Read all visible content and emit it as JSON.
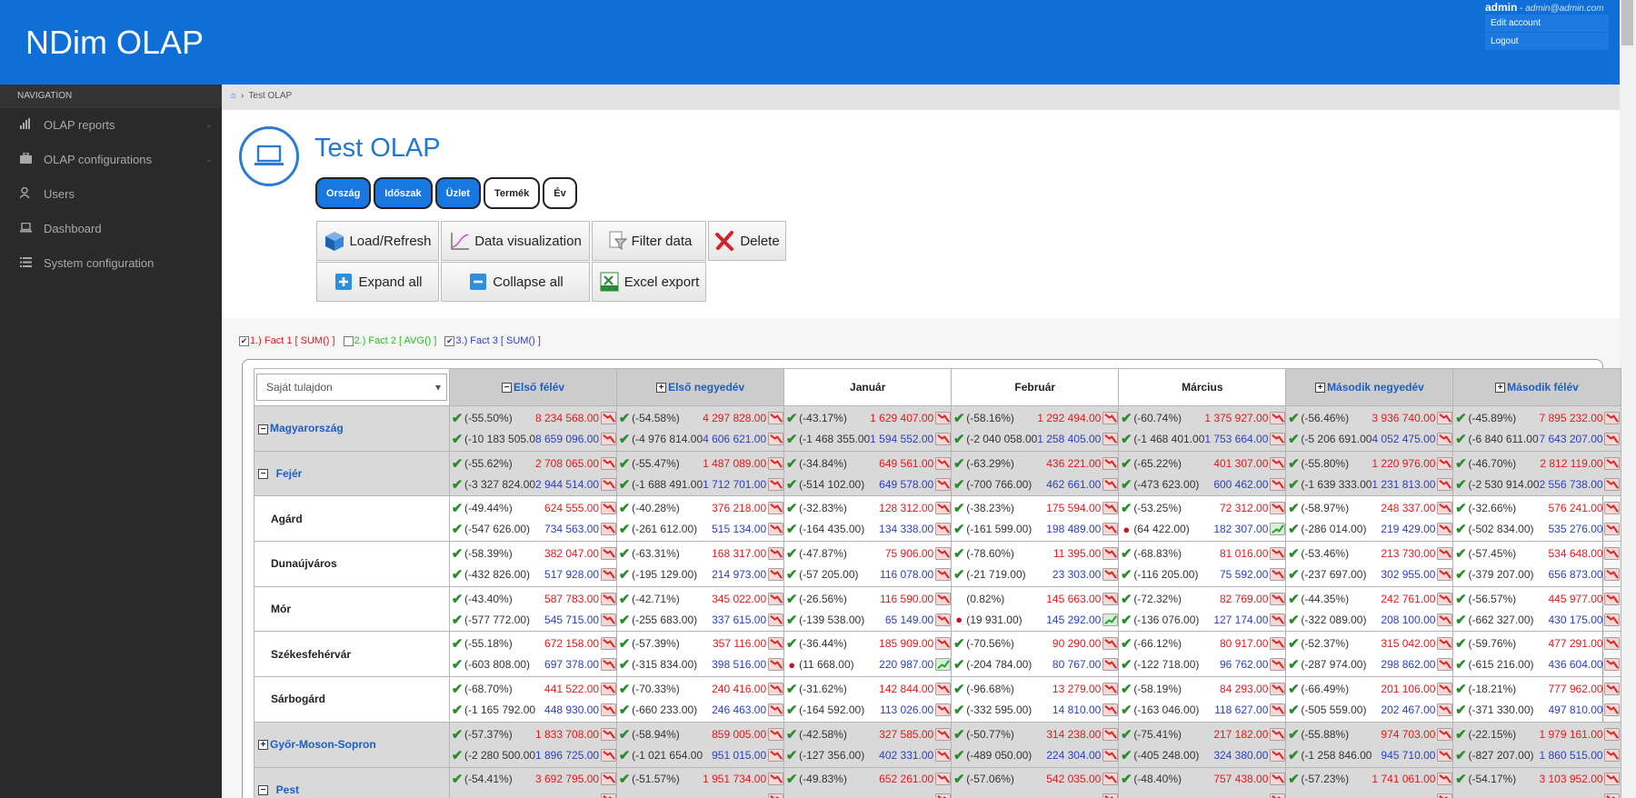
{
  "app": {
    "brand": "NDim OLAP"
  },
  "user": {
    "name": "admin",
    "email": "admin@admin.com",
    "menu": [
      "Edit account",
      "Logout"
    ]
  },
  "nav": {
    "heading": "NAVIGATION",
    "items": [
      "OLAP reports",
      "OLAP configurations",
      "Users",
      "Dashboard",
      "System configuration"
    ]
  },
  "breadcrumb": {
    "page": "Test OLAP"
  },
  "page": {
    "title": "Test OLAP"
  },
  "dimensions": [
    {
      "label": "Ország",
      "active": true
    },
    {
      "label": "Időszak",
      "active": true
    },
    {
      "label": "Üzlet",
      "active": true
    },
    {
      "label": "Termék",
      "active": false
    },
    {
      "label": "Év",
      "active": false
    }
  ],
  "toolbar": {
    "load": "Load/Refresh",
    "viz": "Data visualization",
    "filter": "Filter data",
    "delete": "Delete",
    "expand": "Expand all",
    "collapse": "Collapse all",
    "excel": "Excel export"
  },
  "facts": [
    {
      "label": "1.) Fact 1 [ SUM() ]",
      "checked": true,
      "color": "#e11a1a"
    },
    {
      "label": "2.) Fact 2 [ AVG() ]",
      "checked": false,
      "color": "#22c022"
    },
    {
      "label": "3.) Fact 3 [ SUM() ]",
      "checked": true,
      "color": "#2a3ec8"
    }
  ],
  "table": {
    "selector": "Saját tulajdon",
    "columns": [
      {
        "label": "Első félév",
        "toggle": "-",
        "group": true
      },
      {
        "label": "Első negyedév",
        "toggle": "+",
        "group": true
      },
      {
        "label": "Január",
        "toggle": "",
        "group": false
      },
      {
        "label": "Február",
        "toggle": "",
        "group": false
      },
      {
        "label": "Március",
        "toggle": "",
        "group": false
      },
      {
        "label": "Második negyedév",
        "toggle": "+",
        "group": true
      },
      {
        "label": "Második félév",
        "toggle": "+",
        "group": true
      }
    ],
    "rows": [
      {
        "label": "Magyarország",
        "toggle": "-",
        "group": true,
        "cells": [
          [
            "(-55.50%)",
            "8 234 568.00",
            "(-10 183 505.00)",
            "8 659 096.00",
            "ok",
            "ok",
            "down"
          ],
          [
            "(-54.58%)",
            "4 297 828.00",
            "(-4 976 814.00)",
            "4 606 621.00",
            "ok",
            "ok",
            "down"
          ],
          [
            "(-43.17%)",
            "1 629 407.00",
            "(-1 468 355.00)",
            "1 594 552.00",
            "ok",
            "ok",
            "down"
          ],
          [
            "(-58.16%)",
            "1 292 494.00",
            "(-2 040 058.00)",
            "1 258 405.00",
            "ok",
            "ok",
            "down"
          ],
          [
            "(-60.74%)",
            "1 375 927.00",
            "(-1 468 401.00)",
            "1 753 664.00",
            "ok",
            "ok",
            "down"
          ],
          [
            "(-56.46%)",
            "3 936 740.00",
            "(-5 206 691.00)",
            "4 052 475.00",
            "ok",
            "ok",
            "down"
          ],
          [
            "(-45.89%)",
            "7 895 232.00",
            "(-6 840 611.00)",
            "7 643 207.00",
            "ok",
            "ok",
            "down"
          ]
        ]
      },
      {
        "label": "Fejér",
        "toggle": "-",
        "group": true,
        "cells": [
          [
            "(-55.62%)",
            "2 708 065.00",
            "(-3 327 824.00)",
            "2 944 514.00",
            "ok",
            "ok",
            "down"
          ],
          [
            "(-55.47%)",
            "1 487 089.00",
            "(-1 688 491.00)",
            "1 712 701.00",
            "ok",
            "ok",
            "down"
          ],
          [
            "(-34.84%)",
            "649 561.00",
            "(-514 102.00)",
            "649 578.00",
            "ok",
            "ok",
            "down"
          ],
          [
            "(-63.29%)",
            "436 221.00",
            "(-700 766.00)",
            "462 661.00",
            "ok",
            "ok",
            "down"
          ],
          [
            "(-65.22%)",
            "401 307.00",
            "(-473 623.00)",
            "600 462.00",
            "ok",
            "ok",
            "down"
          ],
          [
            "(-55.80%)",
            "1 220 976.00",
            "(-1 639 333.00)",
            "1 231 813.00",
            "ok",
            "ok",
            "down"
          ],
          [
            "(-46.70%)",
            "2 812 119.00",
            "(-2 530 914.00)",
            "2 556 738.00",
            "ok",
            "ok",
            "down"
          ]
        ]
      },
      {
        "label": "Agárd",
        "toggle": "",
        "group": false,
        "cells": [
          [
            "(-49.44%)",
            "624 555.00",
            "(-547 626.00)",
            "734 563.00",
            "ok",
            "ok",
            "down"
          ],
          [
            "(-40.28%)",
            "376 218.00",
            "(-261 612.00)",
            "515 134.00",
            "ok",
            "ok",
            "down"
          ],
          [
            "(-32.83%)",
            "128 312.00",
            "(-164 435.00)",
            "134 338.00",
            "ok",
            "ok",
            "down"
          ],
          [
            "(-38.23%)",
            "175 594.00",
            "(-161 599.00)",
            "198 489.00",
            "ok",
            "ok",
            "down"
          ],
          [
            "(-53.25%)",
            "72 312.00",
            "(64 422.00)",
            "182 307.00",
            "ok",
            "warn",
            "up"
          ],
          [
            "(-58.97%)",
            "248 337.00",
            "(-286 014.00)",
            "219 429.00",
            "ok",
            "ok",
            "down"
          ],
          [
            "(-32.66%)",
            "576 241.00",
            "(-502 834.00)",
            "535 276.00",
            "ok",
            "ok",
            "down"
          ]
        ]
      },
      {
        "label": "Dunaújváros",
        "toggle": "",
        "group": false,
        "cells": [
          [
            "(-58.39%)",
            "382 047.00",
            "(-432 826.00)",
            "517 928.00",
            "ok",
            "ok",
            "down"
          ],
          [
            "(-63.31%)",
            "168 317.00",
            "(-195 129.00)",
            "214 973.00",
            "ok",
            "ok",
            "down"
          ],
          [
            "(-47.87%)",
            "75 906.00",
            "(-57 205.00)",
            "116 078.00",
            "ok",
            "ok",
            "down"
          ],
          [
            "(-78.60%)",
            "11 395.00",
            "(-21 719.00)",
            "23 303.00",
            "ok",
            "ok",
            "down"
          ],
          [
            "(-68.83%)",
            "81 016.00",
            "(-116 205.00)",
            "75 592.00",
            "ok",
            "ok",
            "down"
          ],
          [
            "(-53.46%)",
            "213 730.00",
            "(-237 697.00)",
            "302 955.00",
            "ok",
            "ok",
            "down"
          ],
          [
            "(-57.45%)",
            "534 648.00",
            "(-379 207.00)",
            "656 873.00",
            "ok",
            "ok",
            "down"
          ]
        ]
      },
      {
        "label": "Mór",
        "toggle": "",
        "group": false,
        "cells": [
          [
            "(-43.40%)",
            "587 783.00",
            "(-577 772.00)",
            "545 715.00",
            "ok",
            "ok",
            "down"
          ],
          [
            "(-42.71%)",
            "345 022.00",
            "(-255 683.00)",
            "337 615.00",
            "ok",
            "ok",
            "down"
          ],
          [
            "(-26.56%)",
            "116 590.00",
            "(-139 538.00)",
            "65 149.00",
            "ok",
            "ok",
            "down"
          ],
          [
            "(0.82%)",
            "145 663.00",
            "(19 931.00)",
            "145 292.00",
            "none",
            "warn",
            "up"
          ],
          [
            "(-72.32%)",
            "82 769.00",
            "(-136 076.00)",
            "127 174.00",
            "ok",
            "ok",
            "down"
          ],
          [
            "(-44.35%)",
            "242 761.00",
            "(-322 089.00)",
            "208 100.00",
            "ok",
            "ok",
            "down"
          ],
          [
            "(-56.57%)",
            "445 977.00",
            "(-662 327.00)",
            "430 175.00",
            "ok",
            "ok",
            "down"
          ]
        ]
      },
      {
        "label": "Székesfehérvár",
        "toggle": "",
        "group": false,
        "cells": [
          [
            "(-55.18%)",
            "672 158.00",
            "(-603 808.00)",
            "697 378.00",
            "ok",
            "ok",
            "down"
          ],
          [
            "(-57.39%)",
            "357 116.00",
            "(-315 834.00)",
            "398 516.00",
            "ok",
            "ok",
            "down"
          ],
          [
            "(-36.44%)",
            "185 909.00",
            "(11 668.00)",
            "220 987.00",
            "ok",
            "warn",
            "up"
          ],
          [
            "(-70.56%)",
            "90 290.00",
            "(-204 784.00)",
            "80 767.00",
            "ok",
            "ok",
            "down"
          ],
          [
            "(-66.12%)",
            "80 917.00",
            "(-122 718.00)",
            "96 762.00",
            "ok",
            "ok",
            "down"
          ],
          [
            "(-52.37%)",
            "315 042.00",
            "(-287 974.00)",
            "298 862.00",
            "ok",
            "ok",
            "down"
          ],
          [
            "(-59.76%)",
            "477 291.00",
            "(-615 216.00)",
            "436 604.00",
            "ok",
            "ok",
            "down"
          ]
        ]
      },
      {
        "label": "Sárbogárd",
        "toggle": "",
        "group": false,
        "cells": [
          [
            "(-68.70%)",
            "441 522.00",
            "(-1 165 792.00)",
            "448 930.00",
            "ok",
            "ok",
            "down"
          ],
          [
            "(-70.33%)",
            "240 416.00",
            "(-660 233.00)",
            "246 463.00",
            "ok",
            "ok",
            "down"
          ],
          [
            "(-31.62%)",
            "142 844.00",
            "(-164 592.00)",
            "113 026.00",
            "ok",
            "ok",
            "down"
          ],
          [
            "(-96.68%)",
            "13 279.00",
            "(-332 595.00)",
            "14 810.00",
            "ok",
            "ok",
            "down"
          ],
          [
            "(-58.19%)",
            "84 293.00",
            "(-163 046.00)",
            "118 627.00",
            "ok",
            "ok",
            "down"
          ],
          [
            "(-66.49%)",
            "201 106.00",
            "(-505 559.00)",
            "202 467.00",
            "ok",
            "ok",
            "down"
          ],
          [
            "(-18.21%)",
            "777 962.00",
            "(-371 330.00)",
            "497 810.00",
            "ok",
            "ok",
            "down"
          ]
        ]
      },
      {
        "label": "Győr-Moson-Sopron",
        "toggle": "+",
        "group": true,
        "cells": [
          [
            "(-57.37%)",
            "1 833 708.00",
            "(-2 280 500.00)",
            "1 896 725.00",
            "ok",
            "ok",
            "down"
          ],
          [
            "(-58.94%)",
            "859 005.00",
            "(-1 021 654.00)",
            "951 015.00",
            "ok",
            "ok",
            "down"
          ],
          [
            "(-42.58%)",
            "327 585.00",
            "(-127 356.00)",
            "402 331.00",
            "ok",
            "ok",
            "down"
          ],
          [
            "(-50.77%)",
            "314 238.00",
            "(-489 050.00)",
            "224 304.00",
            "ok",
            "ok",
            "down"
          ],
          [
            "(-75.41%)",
            "217 182.00",
            "(-405 248.00)",
            "324 380.00",
            "ok",
            "ok",
            "down"
          ],
          [
            "(-55.88%)",
            "974 703.00",
            "(-1 258 846.00)",
            "945 710.00",
            "ok",
            "ok",
            "down"
          ],
          [
            "(-22.15%)",
            "1 979 161.00",
            "(-827 207.00)",
            "1 860 515.00",
            "ok",
            "ok",
            "down"
          ]
        ]
      },
      {
        "label": "Pest",
        "toggle": "-",
        "group": true,
        "cells": [
          [
            "(-54.41%)",
            "3 692 795.00",
            "",
            "",
            "ok",
            "none",
            "down"
          ],
          [
            "(-51.57%)",
            "1 951 734.00",
            "",
            "",
            "ok",
            "none",
            "down"
          ],
          [
            "(-49.83%)",
            "652 261.00",
            "",
            "",
            "ok",
            "none",
            "down"
          ],
          [
            "(-57.06%)",
            "542 035.00",
            "",
            "",
            "ok",
            "none",
            "down"
          ],
          [
            "(-48.40%)",
            "757 438.00",
            "",
            "",
            "ok",
            "none",
            "down"
          ],
          [
            "(-57.23%)",
            "1 741 061.00",
            "",
            "",
            "ok",
            "none",
            "down"
          ],
          [
            "(-54.17%)",
            "3 103 952.00",
            "",
            "",
            "ok",
            "none",
            "down"
          ]
        ]
      }
    ]
  }
}
